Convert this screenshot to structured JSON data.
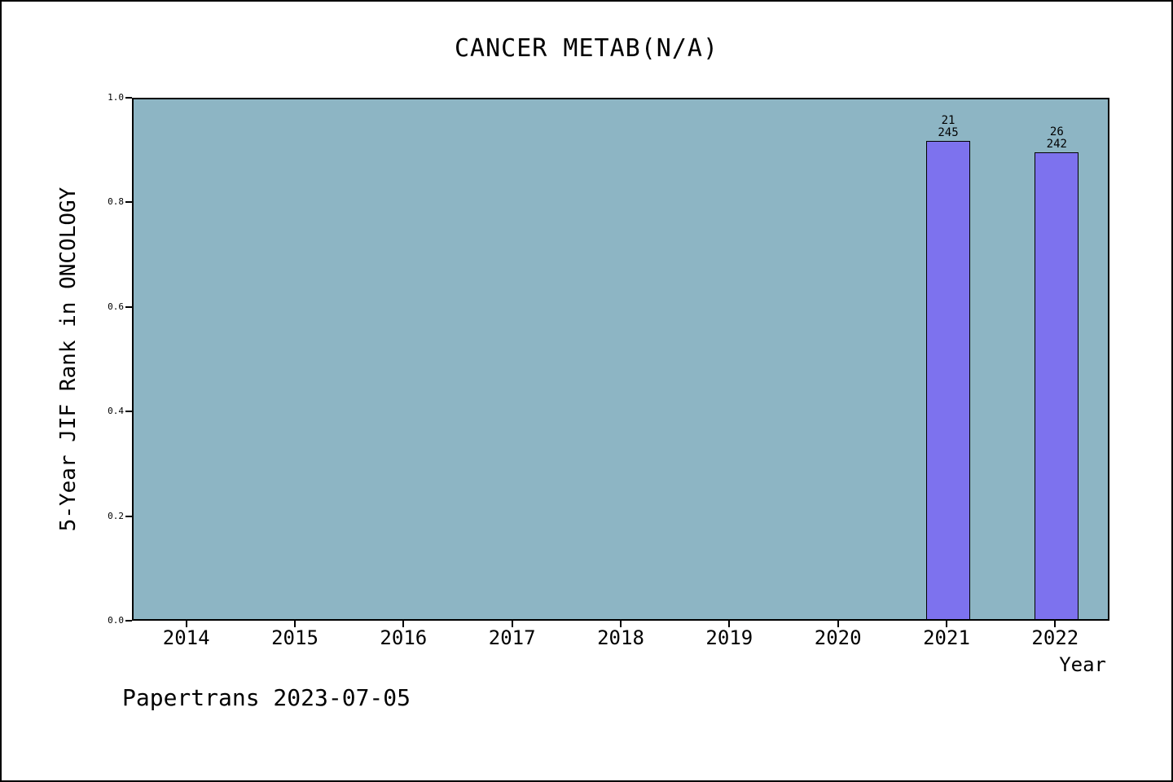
{
  "figure": {
    "footer": "Papertrans 2023-07-05"
  },
  "chart_data": {
    "type": "bar",
    "title": "CANCER METAB(N/A)",
    "xlabel": "Year",
    "ylabel": "5-Year JIF Rank in ONCOLOGY",
    "categories": [
      "2014",
      "2015",
      "2016",
      "2017",
      "2018",
      "2019",
      "2020",
      "2021",
      "2022"
    ],
    "yticks": [
      "0.0",
      "0.2",
      "0.4",
      "0.6",
      "0.8",
      "1.0"
    ],
    "ylim": [
      0,
      1
    ],
    "grid": false,
    "legend": null,
    "bars": [
      {
        "category": "2021",
        "value": 0.914,
        "label_lines": [
          "21",
          "245"
        ]
      },
      {
        "category": "2022",
        "value": 0.893,
        "label_lines": [
          "26",
          "242"
        ]
      }
    ],
    "colors": {
      "plot_background": "#8db5c4",
      "bar_fill": "#7d72ee",
      "bar_edge": "#000000",
      "text": "#000000"
    }
  }
}
